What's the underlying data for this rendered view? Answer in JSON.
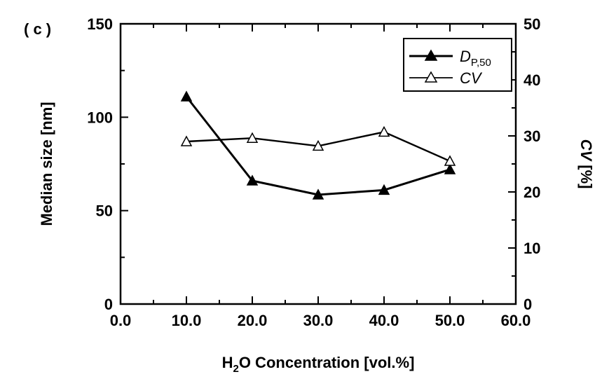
{
  "panel_label": "( c )",
  "chart_data": {
    "type": "line",
    "x": [
      10.0,
      20.0,
      30.0,
      40.0,
      50.0
    ],
    "series": [
      {
        "name": "D_P,50",
        "axis": "left",
        "marker": "filled-triangle",
        "values": [
          111,
          66,
          58.5,
          61,
          72
        ]
      },
      {
        "name": "CV",
        "axis": "right",
        "marker": "open-triangle",
        "values": [
          29,
          29.6,
          28.2,
          30.7,
          25.5
        ]
      }
    ],
    "xlabel": {
      "main": "H",
      "sub": "2",
      "rest": "O Concentration  [vol.%]"
    },
    "ylabel_left": "Median size  [nm]",
    "ylabel_right": {
      "italic": "CV",
      "rest": " [%]"
    },
    "legend": {
      "position": "top-right",
      "dp_main": "D",
      "dp_sub": "P,50",
      "cv": "CV"
    },
    "xlim": [
      0,
      60
    ],
    "ylim_left": [
      0,
      150
    ],
    "ylim_right": [
      0,
      50
    ],
    "x_ticks": [
      "0.0",
      "10.0",
      "20.0",
      "30.0",
      "40.0",
      "50.0",
      "60.0"
    ],
    "y_left_ticks": [
      "0",
      "50",
      "100",
      "150"
    ],
    "y_right_ticks": [
      "0",
      "10",
      "20",
      "30",
      "40",
      "50"
    ],
    "grid": false
  }
}
